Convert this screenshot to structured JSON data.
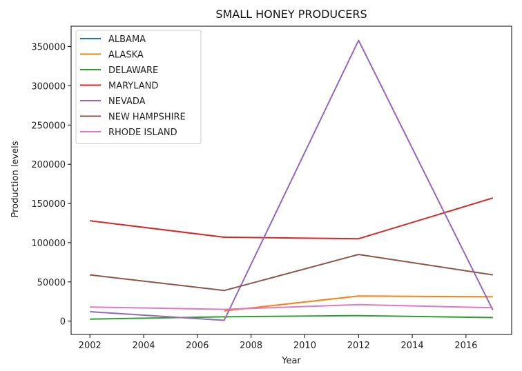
{
  "chart_data": {
    "type": "line",
    "title": "SMALL HONEY PRODUCERS",
    "xlabel": "Year",
    "ylabel": "Production levels",
    "xlim": [
      2001.3,
      2017.7
    ],
    "ylim": [
      -17000,
      376000
    ],
    "xticks": [
      2002,
      2004,
      2006,
      2008,
      2010,
      2012,
      2014,
      2016
    ],
    "yticks": [
      0,
      50000,
      100000,
      150000,
      200000,
      250000,
      300000,
      350000
    ],
    "legend_position": "top-left",
    "grid": false,
    "series": [
      {
        "name": "ALBAMA",
        "color": "#1f77b4",
        "x": [
          2002,
          2007,
          2012,
          2017
        ],
        "values": [
          null,
          null,
          null,
          null
        ]
      },
      {
        "name": "ALASKA",
        "color": "#ff7f0e",
        "x": [
          2002,
          2007,
          2012,
          2017
        ],
        "values": [
          null,
          13000,
          32000,
          31000
        ]
      },
      {
        "name": "DELAWARE",
        "color": "#2ca02c",
        "x": [
          2002,
          2007,
          2012,
          2017
        ],
        "values": [
          2500,
          5500,
          7000,
          4500
        ]
      },
      {
        "name": "MARYLAND",
        "color": "#d62728",
        "x": [
          2002,
          2007,
          2012,
          2017
        ],
        "values": [
          128000,
          107000,
          105000,
          157000
        ]
      },
      {
        "name": "NEVADA",
        "color": "#9467bd",
        "x": [
          2002,
          2007,
          2012,
          2017
        ],
        "values": [
          12000,
          1000,
          358000,
          14000
        ]
      },
      {
        "name": "NEW HAMPSHIRE",
        "color": "#8c564b",
        "x": [
          2002,
          2007,
          2012,
          2017
        ],
        "values": [
          59000,
          39000,
          85000,
          59000
        ]
      },
      {
        "name": "RHODE ISLAND",
        "color": "#e377c2",
        "x": [
          2002,
          2007,
          2012,
          2017
        ],
        "values": [
          18000,
          15000,
          21000,
          17000
        ]
      }
    ]
  }
}
